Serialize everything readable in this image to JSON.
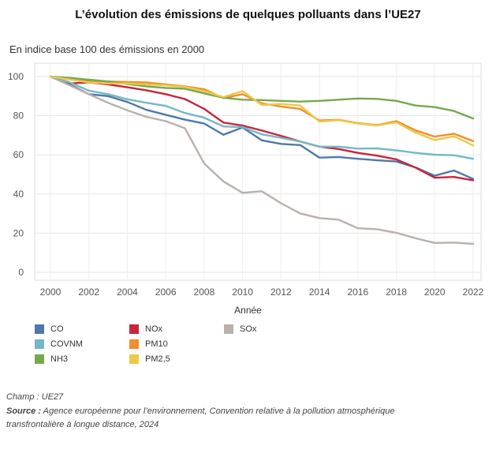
{
  "title": "L’évolution des émissions de quelques polluants dans l’UE27",
  "subtitle": "En indice base 100 des émissions en 2000",
  "footer": {
    "champ": "Champ : UE27",
    "source_label": "Source :",
    "source_text": "Agence européenne pour l’environnement, Convention relative à la pollution atmosphérique",
    "source_text2": "transfrontalière à longue distance, 2024"
  },
  "chart_data": {
    "type": "line",
    "title": "L’évolution des émissions de quelques polluants dans l’UE27",
    "xlabel": "Année",
    "ylabel": "",
    "xlim": [
      2000,
      2022
    ],
    "ylim": [
      0,
      100
    ],
    "xticks": [
      2000,
      2002,
      2004,
      2006,
      2008,
      2010,
      2012,
      2014,
      2016,
      2018,
      2020,
      2022
    ],
    "yticks": [
      0,
      20,
      40,
      60,
      80,
      100
    ],
    "grid": true,
    "legend_position": "bottom-left",
    "x": [
      2000,
      2001,
      2002,
      2003,
      2004,
      2005,
      2006,
      2007,
      2008,
      2009,
      2010,
      2011,
      2012,
      2013,
      2014,
      2015,
      2016,
      2017,
      2018,
      2019,
      2020,
      2021,
      2022
    ],
    "series": [
      {
        "name": "CO",
        "color": "#4e79a7",
        "values": [
          100,
          96,
          91,
          90,
          87,
          83,
          80.5,
          78,
          76,
          70.3,
          74,
          67.4,
          65.6,
          65,
          58.6,
          58.9,
          58,
          57.2,
          56.6,
          53.6,
          49.3,
          52,
          47.7
        ]
      },
      {
        "name": "NOx",
        "color": "#c8243c",
        "values": [
          100,
          96.5,
          97,
          96,
          94.5,
          93,
          91,
          88.5,
          83.5,
          76.5,
          75,
          72.4,
          69.7,
          66.8,
          64.2,
          63,
          61,
          59.6,
          57.7,
          53.5,
          48.3,
          48.7,
          47
        ]
      },
      {
        "name": "SOx",
        "color": "#bab0ac",
        "values": [
          100,
          95.5,
          91,
          86.6,
          82.8,
          79.4,
          77.2,
          73.6,
          55.6,
          46.4,
          40.6,
          41.4,
          35.3,
          30.1,
          27.7,
          26.9,
          22.5,
          22,
          20.2,
          17.4,
          15,
          15.2,
          14.5
        ]
      },
      {
        "name": "COVNM",
        "color": "#76b7c6",
        "values": [
          100,
          97,
          92.8,
          91,
          88.4,
          86.6,
          85,
          81.4,
          79,
          74.5,
          74.2,
          70.5,
          68.7,
          66.8,
          64.2,
          64.2,
          63.2,
          63.3,
          62.3,
          61,
          60.1,
          59.8,
          58
        ]
      },
      {
        "name": "PM10",
        "color": "#f28e2b",
        "values": [
          100,
          98.5,
          97.5,
          97.5,
          97.2,
          97,
          96,
          95,
          93.5,
          89,
          91,
          86.3,
          84.7,
          83.5,
          77.6,
          77.9,
          76.2,
          75.2,
          77.2,
          72.5,
          69.3,
          70.8,
          67
        ]
      },
      {
        "name": "NH3",
        "color": "#76a84f",
        "values": [
          100,
          99.3,
          98.4,
          97.5,
          96.2,
          95,
          94.2,
          93.8,
          91.4,
          89.2,
          88.2,
          88,
          87.6,
          87.2,
          87.6,
          88.2,
          88.8,
          88.6,
          87.6,
          85.2,
          84.4,
          82.4,
          78.6
        ]
      },
      {
        "name": "PM2,5",
        "color": "#edc948",
        "values": [
          100,
          98.5,
          97,
          96.5,
          96.5,
          96,
          95.5,
          94.7,
          92.5,
          89.5,
          92.6,
          85.5,
          86,
          85.2,
          77,
          77.7,
          76,
          75,
          76.6,
          71.4,
          67.6,
          69.5,
          64.8
        ]
      }
    ]
  }
}
